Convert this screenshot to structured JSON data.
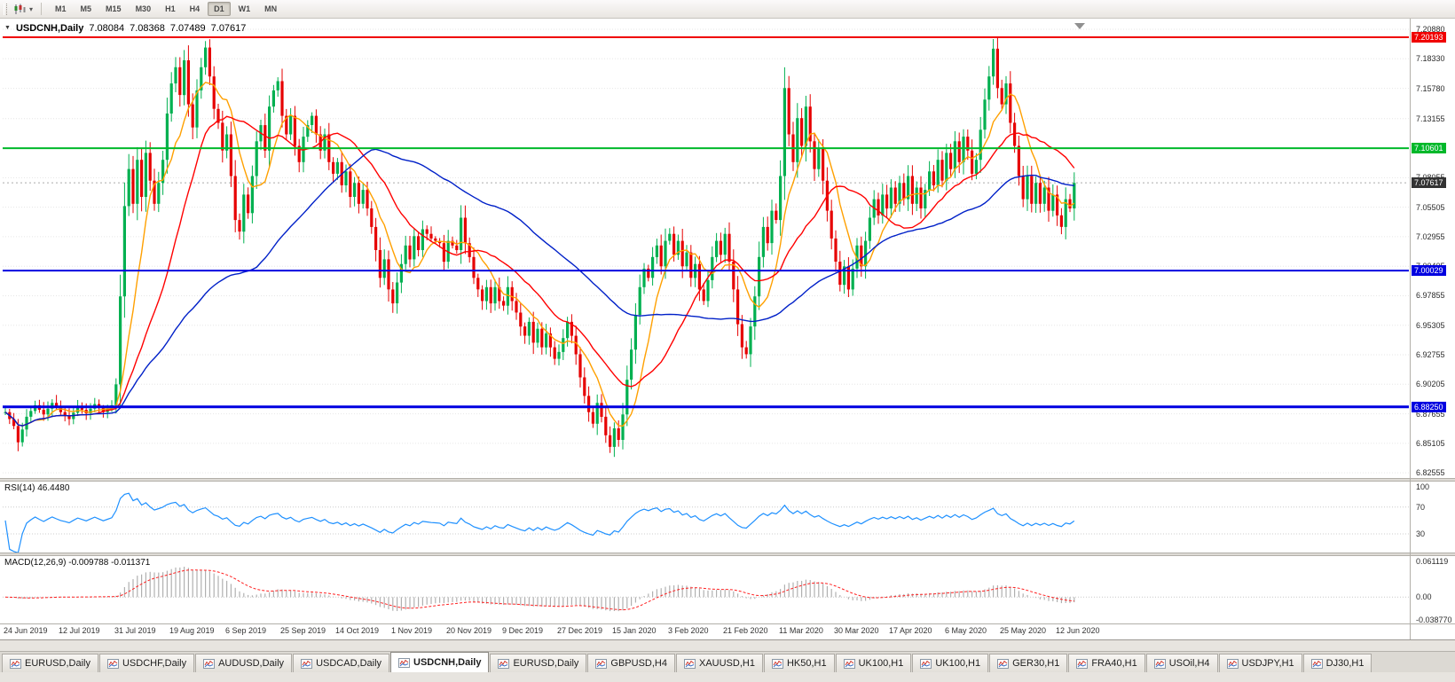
{
  "toolbar": {
    "timeframes": [
      {
        "label": "M1",
        "active": false
      },
      {
        "label": "M5",
        "active": false
      },
      {
        "label": "M15",
        "active": false
      },
      {
        "label": "M30",
        "active": false
      },
      {
        "label": "H1",
        "active": false
      },
      {
        "label": "H4",
        "active": false
      },
      {
        "label": "D1",
        "active": true
      },
      {
        "label": "W1",
        "active": false
      },
      {
        "label": "MN",
        "active": false
      }
    ]
  },
  "chart_data": {
    "type": "candlestick",
    "symbol": "USDCNH",
    "timeframe": "Daily",
    "header": {
      "symbol_label": "USDCNH,Daily",
      "open": "7.08084",
      "high": "7.08368",
      "low": "7.07489",
      "close": "7.07617"
    },
    "y_axis": {
      "ticks": [
        "7.20880",
        "7.18330",
        "7.15780",
        "7.13155",
        "7.10605",
        "7.08055",
        "7.05505",
        "7.02955",
        "7.00405",
        "6.97855",
        "6.95305",
        "6.92755",
        "6.90205",
        "6.87655",
        "6.85105",
        "6.82555"
      ]
    },
    "x_axis": {
      "bars_per_label": 13,
      "labels": [
        "24 Jun 2019",
        "12 Jul 2019",
        "31 Jul 2019",
        "19 Aug 2019",
        "6 Sep 2019",
        "25 Sep 2019",
        "14 Oct 2019",
        "1 Nov 2019",
        "20 Nov 2019",
        "9 Dec 2019",
        "27 Dec 2019",
        "15 Jan 2020",
        "3 Feb 2020",
        "21 Feb 2020",
        "11 Mar 2020",
        "30 Mar 2020",
        "17 Apr 2020",
        "6 May 2020",
        "25 May 2020",
        "12 Jun 2020"
      ]
    },
    "price_lines": [
      {
        "price": 7.20193,
        "label": "7.20193",
        "color": "#f00000",
        "width": 2
      },
      {
        "price": 7.10601,
        "label": "7.10601",
        "color": "#00b82a",
        "width": 2
      },
      {
        "price": 7.00029,
        "label": "7.00029",
        "color": "#0000e0",
        "width": 2
      },
      {
        "price": 6.8825,
        "label": "6.88250",
        "color": "#0000e0",
        "width": 3
      }
    ],
    "current_price": {
      "value": 7.07617,
      "label": "7.07617",
      "badge_color": "#333333"
    },
    "bar_count": 252,
    "candle_colors": {
      "up": "#00b050",
      "down": "#e60000"
    },
    "moving_averages": [
      {
        "period": 8,
        "color": "#ffa000"
      },
      {
        "period": 20,
        "color": "#ff0000"
      },
      {
        "period": 60,
        "color": "#0020c8"
      }
    ],
    "close_anchors": [
      [
        0,
        6.878
      ],
      [
        2,
        6.866
      ],
      [
        3,
        6.852
      ],
      [
        5,
        6.874
      ],
      [
        7,
        6.884
      ],
      [
        9,
        6.876
      ],
      [
        11,
        6.886
      ],
      [
        13,
        6.878
      ],
      [
        15,
        6.872
      ],
      [
        17,
        6.883
      ],
      [
        19,
        6.877
      ],
      [
        21,
        6.885
      ],
      [
        23,
        6.878
      ],
      [
        25,
        6.884
      ],
      [
        26,
        6.902
      ],
      [
        27,
        6.978
      ],
      [
        28,
        7.056
      ],
      [
        29,
        7.088
      ],
      [
        30,
        7.058
      ],
      [
        31,
        7.096
      ],
      [
        32,
        7.064
      ],
      [
        33,
        7.102
      ],
      [
        34,
        7.078
      ],
      [
        35,
        7.058
      ],
      [
        36,
        7.076
      ],
      [
        37,
        7.096
      ],
      [
        38,
        7.136
      ],
      [
        39,
        7.162
      ],
      [
        40,
        7.176
      ],
      [
        41,
        7.152
      ],
      [
        42,
        7.182
      ],
      [
        43,
        7.144
      ],
      [
        44,
        7.124
      ],
      [
        45,
        7.156
      ],
      [
        46,
        7.176
      ],
      [
        47,
        7.193
      ],
      [
        48,
        7.168
      ],
      [
        49,
        7.14
      ],
      [
        50,
        7.128
      ],
      [
        51,
        7.104
      ],
      [
        52,
        7.118
      ],
      [
        53,
        7.082
      ],
      [
        54,
        7.044
      ],
      [
        55,
        7.034
      ],
      [
        56,
        7.066
      ],
      [
        57,
        7.05
      ],
      [
        58,
        7.082
      ],
      [
        59,
        7.112
      ],
      [
        60,
        7.126
      ],
      [
        61,
        7.104
      ],
      [
        62,
        7.142
      ],
      [
        63,
        7.156
      ],
      [
        64,
        7.164
      ],
      [
        65,
        7.134
      ],
      [
        66,
        7.118
      ],
      [
        67,
        7.134
      ],
      [
        68,
        7.108
      ],
      [
        69,
        7.094
      ],
      [
        70,
        7.116
      ],
      [
        71,
        7.126
      ],
      [
        72,
        7.134
      ],
      [
        73,
        7.118
      ],
      [
        74,
        7.104
      ],
      [
        75,
        7.118
      ],
      [
        76,
        7.094
      ],
      [
        77,
        7.084
      ],
      [
        78,
        7.094
      ],
      [
        79,
        7.074
      ],
      [
        80,
        7.086
      ],
      [
        81,
        7.064
      ],
      [
        82,
        7.076
      ],
      [
        83,
        7.058
      ],
      [
        84,
        7.07
      ],
      [
        85,
        7.054
      ],
      [
        86,
        7.038
      ],
      [
        87,
        7.018
      ],
      [
        88,
        6.994
      ],
      [
        89,
        7.01
      ],
      [
        90,
        6.984
      ],
      [
        91,
        6.972
      ],
      [
        92,
        6.99
      ],
      [
        93,
        7.006
      ],
      [
        94,
        7.022
      ],
      [
        95,
        7.01
      ],
      [
        96,
        7.03
      ],
      [
        97,
        7.018
      ],
      [
        98,
        7.036
      ],
      [
        100,
        7.028
      ],
      [
        102,
        7.024
      ],
      [
        103,
        7.008
      ],
      [
        104,
        7.026
      ],
      [
        106,
        7.018
      ],
      [
        107,
        7.046
      ],
      [
        108,
        7.024
      ],
      [
        109,
        7.012
      ],
      [
        110,
        6.994
      ],
      [
        112,
        6.974
      ],
      [
        113,
        6.986
      ],
      [
        114,
        6.972
      ],
      [
        115,
        6.986
      ],
      [
        116,
        6.974
      ],
      [
        117,
        6.97
      ],
      [
        118,
        6.986
      ],
      [
        119,
        6.974
      ],
      [
        120,
        6.964
      ],
      [
        121,
        6.952
      ],
      [
        122,
        6.944
      ],
      [
        123,
        6.956
      ],
      [
        124,
        6.938
      ],
      [
        125,
        6.95
      ],
      [
        126,
        6.934
      ],
      [
        127,
        6.946
      ],
      [
        128,
        6.934
      ],
      [
        129,
        6.924
      ],
      [
        130,
        6.93
      ],
      [
        131,
        6.942
      ],
      [
        132,
        6.956
      ],
      [
        133,
        6.944
      ],
      [
        134,
        6.928
      ],
      [
        135,
        6.908
      ],
      [
        136,
        6.892
      ],
      [
        137,
        6.878
      ],
      [
        138,
        6.868
      ],
      [
        139,
        6.886
      ],
      [
        140,
        6.874
      ],
      [
        141,
        6.858
      ],
      [
        142,
        6.848
      ],
      [
        143,
        6.864
      ],
      [
        144,
        6.854
      ],
      [
        145,
        6.876
      ],
      [
        146,
        6.906
      ],
      [
        147,
        6.932
      ],
      [
        148,
        6.962
      ],
      [
        149,
        6.986
      ],
      [
        150,
        7.002
      ],
      [
        151,
        6.994
      ],
      [
        152,
        7.012
      ],
      [
        153,
        7.022
      ],
      [
        154,
        7.004
      ],
      [
        155,
        7.026
      ],
      [
        156,
        7.032
      ],
      [
        157,
        7.014
      ],
      [
        158,
        7.026
      ],
      [
        159,
        7.004
      ],
      [
        160,
        7.016
      ],
      [
        161,
        6.994
      ],
      [
        162,
        7.006
      ],
      [
        163,
        6.984
      ],
      [
        164,
        6.974
      ],
      [
        165,
        6.992
      ],
      [
        166,
        7.012
      ],
      [
        167,
        7.026
      ],
      [
        168,
        7.014
      ],
      [
        169,
        7.032
      ],
      [
        170,
        7.008
      ],
      [
        171,
        6.984
      ],
      [
        172,
        6.954
      ],
      [
        173,
        6.934
      ],
      [
        174,
        6.928
      ],
      [
        175,
        6.952
      ],
      [
        176,
        6.978
      ],
      [
        177,
        7.012
      ],
      [
        178,
        7.038
      ],
      [
        179,
        7.024
      ],
      [
        180,
        7.052
      ],
      [
        181,
        7.044
      ],
      [
        182,
        7.082
      ],
      [
        183,
        7.158
      ],
      [
        184,
        7.118
      ],
      [
        185,
        7.094
      ],
      [
        186,
        7.132
      ],
      [
        187,
        7.108
      ],
      [
        188,
        7.142
      ],
      [
        189,
        7.112
      ],
      [
        190,
        7.088
      ],
      [
        191,
        7.106
      ],
      [
        192,
        7.078
      ],
      [
        193,
        7.052
      ],
      [
        194,
        7.028
      ],
      [
        195,
        7.008
      ],
      [
        196,
        6.988
      ],
      [
        197,
        7.004
      ],
      [
        198,
        6.984
      ],
      [
        199,
        7.002
      ],
      [
        200,
        7.022
      ],
      [
        201,
        7.004
      ],
      [
        202,
        7.026
      ],
      [
        203,
        7.046
      ],
      [
        204,
        7.062
      ],
      [
        205,
        7.048
      ],
      [
        206,
        7.066
      ],
      [
        207,
        7.054
      ],
      [
        208,
        7.072
      ],
      [
        209,
        7.058
      ],
      [
        210,
        7.076
      ],
      [
        211,
        7.062
      ],
      [
        212,
        7.082
      ],
      [
        213,
        7.058
      ],
      [
        214,
        7.072
      ],
      [
        215,
        7.054
      ],
      [
        216,
        7.07
      ],
      [
        217,
        7.086
      ],
      [
        218,
        7.074
      ],
      [
        219,
        7.096
      ],
      [
        220,
        7.078
      ],
      [
        221,
        7.102
      ],
      [
        222,
        7.088
      ],
      [
        223,
        7.112
      ],
      [
        224,
        7.094
      ],
      [
        225,
        7.116
      ],
      [
        226,
        7.104
      ],
      [
        227,
        7.084
      ],
      [
        228,
        7.096
      ],
      [
        229,
        7.122
      ],
      [
        230,
        7.148
      ],
      [
        231,
        7.168
      ],
      [
        232,
        7.192
      ],
      [
        233,
        7.158
      ],
      [
        234,
        7.144
      ],
      [
        235,
        7.162
      ],
      [
        236,
        7.128
      ],
      [
        237,
        7.108
      ],
      [
        238,
        7.082
      ],
      [
        239,
        7.062
      ],
      [
        240,
        7.082
      ],
      [
        241,
        7.058
      ],
      [
        242,
        7.076
      ],
      [
        243,
        7.058
      ],
      [
        244,
        7.072
      ],
      [
        245,
        7.052
      ],
      [
        246,
        7.066
      ],
      [
        247,
        7.048
      ],
      [
        248,
        7.038
      ],
      [
        249,
        7.062
      ],
      [
        250,
        7.054
      ],
      [
        251,
        7.076
      ]
    ]
  },
  "rsi": {
    "label": "RSI(14) 46.4480",
    "color": "#1e90ff",
    "levels": [
      {
        "value": 100,
        "label": "100"
      },
      {
        "value": 70,
        "label": "70"
      },
      {
        "value": 30,
        "label": "30"
      }
    ]
  },
  "macd": {
    "label": "MACD(12,26,9) -0.009788 -0.011371",
    "histogram_color": "#b0b0b0",
    "signal_color": "#ff2020",
    "scale": [
      {
        "value": 0.061119,
        "label": "0.061119"
      },
      {
        "value": 0,
        "label": "0.00"
      },
      {
        "value": -0.03877,
        "label": "-0.038770"
      }
    ]
  },
  "tabs": [
    {
      "label": "EURUSD,Daily",
      "active": false
    },
    {
      "label": "USDCHF,Daily",
      "active": false
    },
    {
      "label": "AUDUSD,Daily",
      "active": false
    },
    {
      "label": "USDCAD,Daily",
      "active": false
    },
    {
      "label": "USDCNH,Daily",
      "active": true
    },
    {
      "label": "EURUSD,Daily",
      "active": false
    },
    {
      "label": "GBPUSD,H4",
      "active": false
    },
    {
      "label": "XAUUSD,H1",
      "active": false
    },
    {
      "label": "HK50,H1",
      "active": false
    },
    {
      "label": "UK100,H1",
      "active": false
    },
    {
      "label": "UK100,H1",
      "active": false
    },
    {
      "label": "GER30,H1",
      "active": false
    },
    {
      "label": "FRA40,H1",
      "active": false
    },
    {
      "label": "USOil,H4",
      "active": false
    },
    {
      "label": "USDJPY,H1",
      "active": false
    },
    {
      "label": "DJ30,H1",
      "active": false
    }
  ]
}
